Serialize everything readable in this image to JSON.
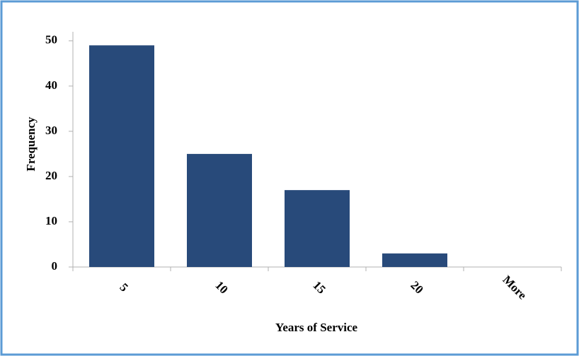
{
  "chart_data": {
    "type": "bar",
    "x_label": "Years of Service",
    "y_label": "Frequency",
    "categories": [
      "5",
      "10",
      "15",
      "20",
      "More"
    ],
    "values": [
      49,
      25,
      17,
      3,
      0
    ],
    "color": "#284a7a",
    "ylim": [
      0,
      52
    ],
    "yticks": [
      0,
      10,
      20,
      30,
      40,
      50
    ],
    "grid": false
  }
}
